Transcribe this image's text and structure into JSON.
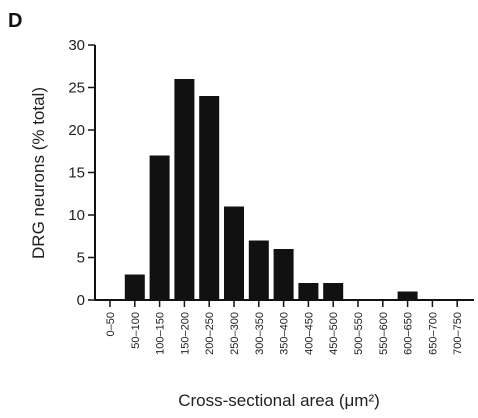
{
  "panel_label": "D",
  "chart_data": {
    "type": "bar",
    "title": "",
    "xlabel": "Cross-sectional area (μm²)",
    "ylabel": "DRG neurons (% total)",
    "categories": [
      "0–50",
      "50–100",
      "100–150",
      "150–200",
      "200–250",
      "250–300",
      "300–350",
      "350–400",
      "400–450",
      "450–500",
      "500–550",
      "550–600",
      "600–650",
      "650–700",
      "700–750"
    ],
    "values": [
      0,
      3,
      17,
      26,
      24,
      11,
      7,
      6,
      2,
      2,
      0,
      0,
      1,
      0,
      0
    ],
    "ylim": [
      0,
      30
    ],
    "yticks": [
      0,
      5,
      10,
      15,
      20,
      25,
      30
    ],
    "grid": false,
    "bar_color": "#111111"
  }
}
